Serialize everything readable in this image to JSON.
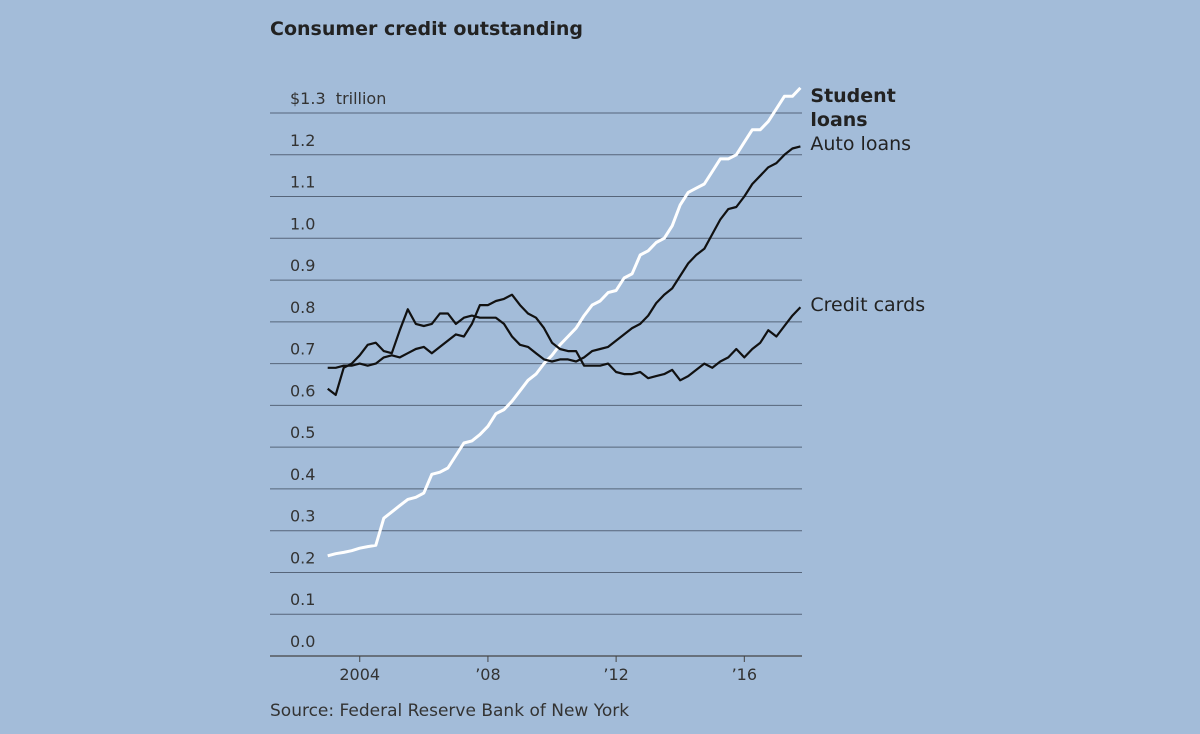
{
  "chart_data": {
    "type": "line",
    "title": "Consumer credit outstanding",
    "source": "Source: Federal Reserve Bank of New York",
    "x": [
      2003,
      2003.25,
      2003.5,
      2003.75,
      2004,
      2004.25,
      2004.5,
      2004.75,
      2005,
      2005.25,
      2005.5,
      2005.75,
      2006,
      2006.25,
      2006.5,
      2006.75,
      2007,
      2007.25,
      2007.5,
      2007.75,
      2008,
      2008.25,
      2008.5,
      2008.75,
      2009,
      2009.25,
      2009.5,
      2009.75,
      2010,
      2010.25,
      2010.5,
      2010.75,
      2011,
      2011.25,
      2011.5,
      2011.75,
      2012,
      2012.25,
      2012.5,
      2012.75,
      2013,
      2013.25,
      2013.5,
      2013.75,
      2014,
      2014.25,
      2014.5,
      2014.75,
      2015,
      2015.25,
      2015.5,
      2015.75,
      2016,
      2016.25,
      2016.5,
      2016.75,
      2017,
      2017.25,
      2017.5,
      2017.75
    ],
    "series": [
      {
        "name": "Student loans",
        "color": "#ffffff",
        "bold": true,
        "values": [
          0.24,
          0.245,
          0.248,
          0.252,
          0.258,
          0.262,
          0.265,
          0.33,
          0.345,
          0.36,
          0.375,
          0.38,
          0.39,
          0.435,
          0.44,
          0.45,
          0.48,
          0.51,
          0.515,
          0.53,
          0.55,
          0.58,
          0.59,
          0.61,
          0.635,
          0.66,
          0.675,
          0.7,
          0.72,
          0.745,
          0.765,
          0.785,
          0.815,
          0.84,
          0.85,
          0.87,
          0.875,
          0.905,
          0.915,
          0.96,
          0.97,
          0.99,
          1.0,
          1.03,
          1.08,
          1.11,
          1.12,
          1.13,
          1.16,
          1.19,
          1.19,
          1.2,
          1.23,
          1.26,
          1.26,
          1.28,
          1.31,
          1.34,
          1.34,
          1.36
        ]
      },
      {
        "name": "Auto loans",
        "color": "#111111",
        "bold": false,
        "values": [
          0.64,
          0.625,
          0.69,
          0.7,
          0.72,
          0.745,
          0.75,
          0.73,
          0.725,
          0.78,
          0.83,
          0.795,
          0.79,
          0.795,
          0.82,
          0.82,
          0.795,
          0.81,
          0.815,
          0.81,
          0.81,
          0.81,
          0.795,
          0.765,
          0.745,
          0.74,
          0.725,
          0.71,
          0.705,
          0.71,
          0.71,
          0.705,
          0.715,
          0.73,
          0.735,
          0.74,
          0.755,
          0.77,
          0.785,
          0.795,
          0.815,
          0.845,
          0.865,
          0.88,
          0.91,
          0.94,
          0.96,
          0.975,
          1.01,
          1.045,
          1.07,
          1.075,
          1.1,
          1.13,
          1.15,
          1.17,
          1.18,
          1.2,
          1.215,
          1.22
        ]
      },
      {
        "name": "Credit cards",
        "color": "#111111",
        "bold": false,
        "values": [
          0.69,
          0.69,
          0.695,
          0.695,
          0.7,
          0.695,
          0.7,
          0.715,
          0.72,
          0.715,
          0.725,
          0.735,
          0.74,
          0.725,
          0.74,
          0.755,
          0.77,
          0.765,
          0.795,
          0.84,
          0.84,
          0.85,
          0.855,
          0.865,
          0.84,
          0.82,
          0.81,
          0.785,
          0.75,
          0.735,
          0.73,
          0.73,
          0.695,
          0.695,
          0.695,
          0.7,
          0.68,
          0.675,
          0.675,
          0.68,
          0.665,
          0.67,
          0.675,
          0.685,
          0.66,
          0.67,
          0.685,
          0.7,
          0.69,
          0.705,
          0.715,
          0.735,
          0.715,
          0.735,
          0.75,
          0.78,
          0.765,
          0.79,
          0.815,
          0.835
        ]
      }
    ],
    "xlim": [
      2001.2,
      2017.8
    ],
    "xticks": [
      2004,
      {
        "value": 2008,
        "label": "’08"
      },
      {
        "value": 2012,
        "label": "’12"
      },
      {
        "value": 2016,
        "label": "’16"
      }
    ],
    "ylim": [
      0,
      1.3
    ],
    "yticks": [
      {
        "value": 0,
        "label": "0.0"
      },
      0.1,
      0.2,
      0.3,
      0.4,
      0.5,
      0.6,
      0.7,
      0.8,
      0.9,
      {
        "value": 1,
        "label": "1.0"
      },
      1.1,
      1.2,
      {
        "value": 1.3,
        "label": "$1.3  trillion"
      }
    ],
    "grid": true
  }
}
